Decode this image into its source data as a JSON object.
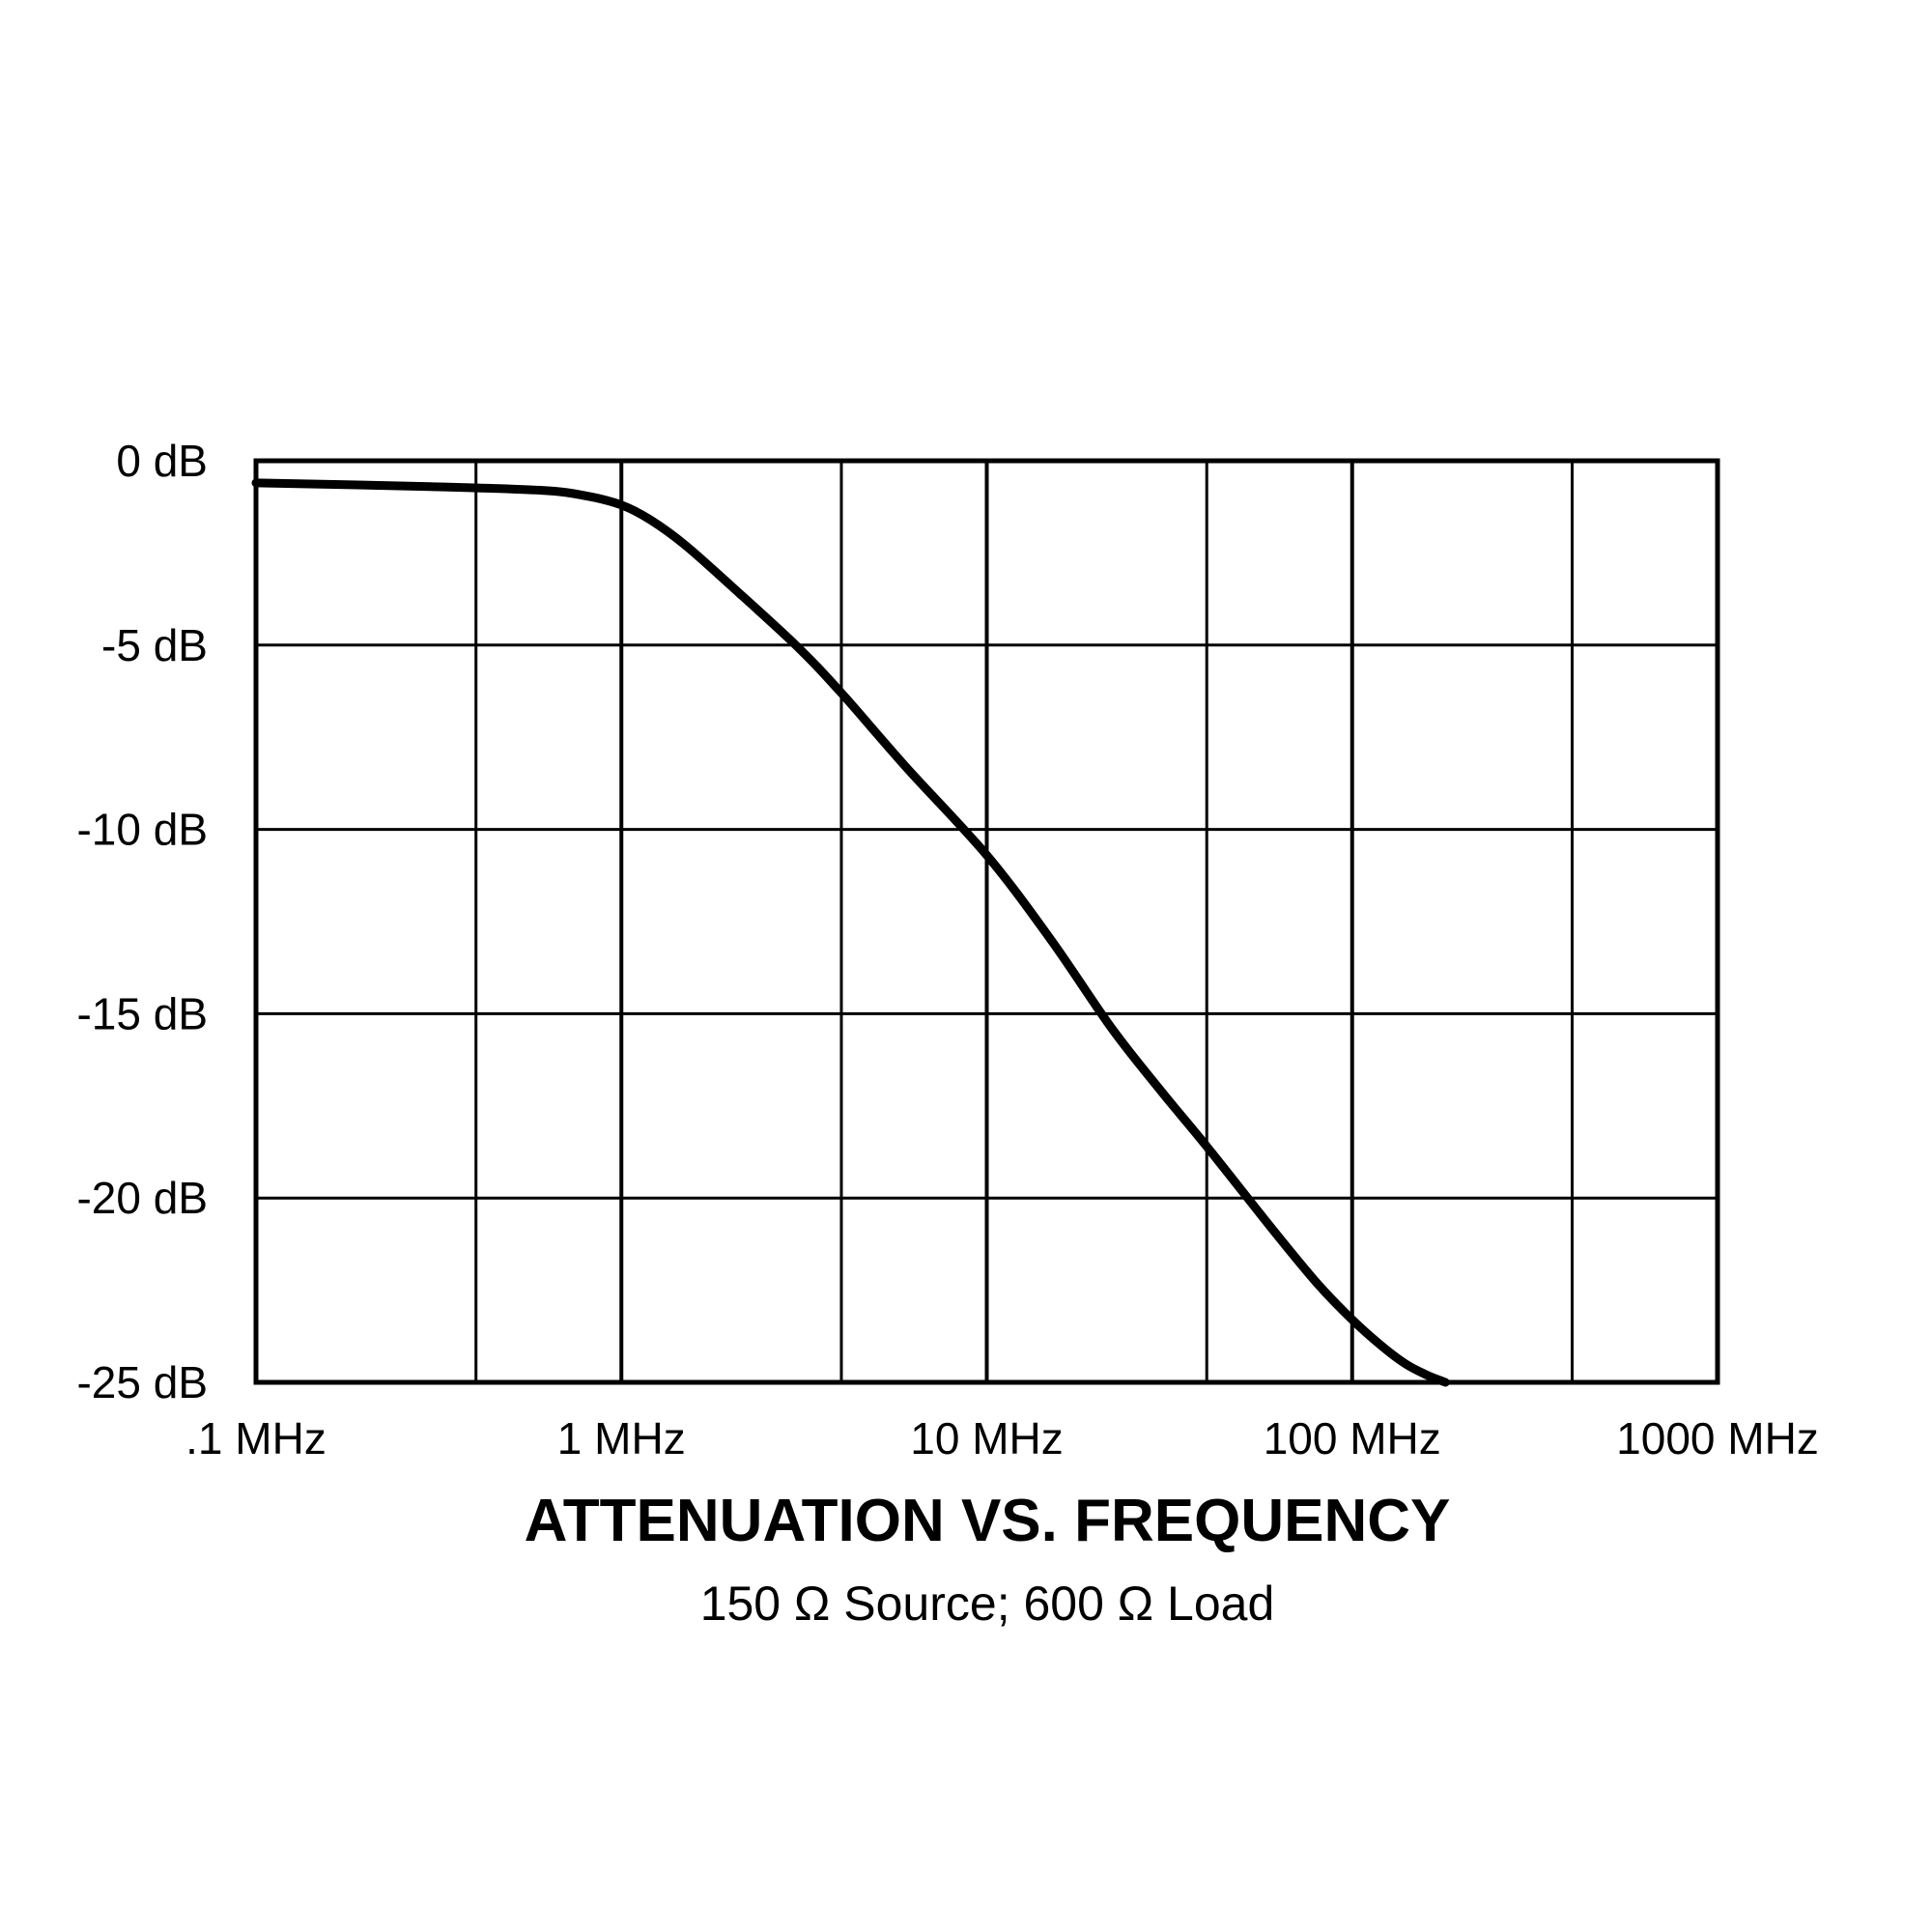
{
  "chart_data": {
    "type": "line",
    "title": "ATTENUATION VS. FREQUENCY",
    "subtitle": "150 Ω Source; 600 Ω Load",
    "xlabel": "",
    "ylabel": "",
    "x_scale": "log",
    "xlim": [
      0.1,
      1000
    ],
    "ylim": [
      -25,
      0
    ],
    "grid": true,
    "legend": "none",
    "x_ticks": [
      0.1,
      1,
      10,
      100,
      1000
    ],
    "x_tick_labels": [
      ".1 MHz",
      "1 MHz",
      "10 MHz",
      "100 MHz",
      "1000 MHz"
    ],
    "x_minor_grid": [
      0.4,
      4,
      40,
      400
    ],
    "y_ticks": [
      0,
      -5,
      -10,
      -15,
      -20,
      -25
    ],
    "y_tick_labels": [
      "0 dB",
      "-5 dB",
      "-10 dB",
      "-15 dB",
      "-20 dB",
      "-25 dB"
    ],
    "line_color": "#000000",
    "series": [
      {
        "x": [
          0.1,
          0.3,
          0.6,
          0.8,
          1.0,
          1.2,
          1.5,
          2.0,
          3.0,
          4.0,
          6.0,
          10.0,
          15.0,
          22.0,
          30.0,
          40.0,
          60.0,
          80.0,
          100.0,
          120.0,
          140.0,
          160.0,
          180.0
        ],
        "y": [
          -0.6,
          -0.7,
          -0.8,
          -0.95,
          -1.2,
          -1.6,
          -2.3,
          -3.4,
          -5.0,
          -6.3,
          -8.3,
          -10.7,
          -13.0,
          -15.4,
          -17.1,
          -18.6,
          -20.8,
          -22.3,
          -23.3,
          -24.0,
          -24.5,
          -24.8,
          -25.0
        ]
      }
    ]
  }
}
